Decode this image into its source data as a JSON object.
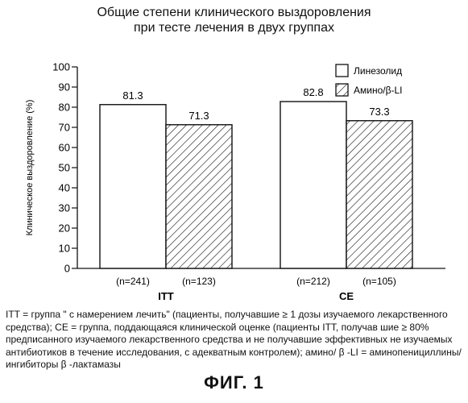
{
  "chart_data": {
    "type": "bar",
    "title": "Общие степени клинического выздоровления",
    "subtitle": "при тесте лечения в двух группах",
    "ylabel": "Клиническое выздоровление (%)",
    "ylim": [
      0,
      100
    ],
    "yticks": [
      "0",
      "10",
      "20",
      "30",
      "40",
      "50",
      "60",
      "70",
      "80",
      "90",
      "100"
    ],
    "categories": [
      "ITT",
      "CE"
    ],
    "series": [
      {
        "name": "Линезолид",
        "values": [
          81.3,
          82.8
        ],
        "value_labels": [
          "81.3",
          "82.8"
        ],
        "n_labels": [
          "(n=241)",
          "(n=212)"
        ],
        "fill": "plain"
      },
      {
        "name": "Амино/β-LI",
        "values": [
          71.3,
          73.3
        ],
        "value_labels": [
          "71.3",
          "73.3"
        ],
        "n_labels": [
          "(n=123)",
          "(n=105)"
        ],
        "fill": "hatched"
      }
    ],
    "legend_position": "top-right",
    "grid": false
  },
  "footnote": "ITT = группа \" с намерением лечить\" (пациенты, получавшие ≥ 1 дозы изучаемого лекарственного средства); CE = группа, поддающаяся клинической оценке (пациенты ITT, получав шие ≥ 80% предписанного изучаемого лекарственного средства и не получавшие эффективных не изучаемых антибиотиков в течение исследования, с адекватным контролем); амино/ β -LI = аминопенициллины/ингибиторы β -лактамазы",
  "figure_label": "ФИГ. 1"
}
